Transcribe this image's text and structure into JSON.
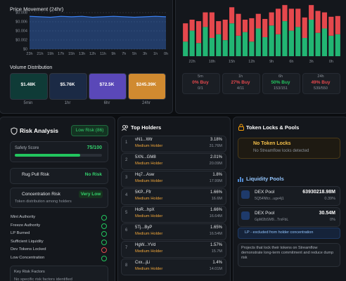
{
  "chart_data": [
    {
      "type": "line",
      "title": "Price Movement (24hr)",
      "categories": [
        "23h",
        "21h",
        "19h",
        "17h",
        "15h",
        "13h",
        "12h",
        "11h",
        "9h",
        "7h",
        "5h",
        "3h",
        "1h",
        "0h"
      ],
      "values": [
        0.0072,
        0.0071,
        0.007,
        0.0072,
        0.0071,
        0.0072,
        0.007,
        0.0071,
        0.0072,
        0.0071,
        0.007,
        0.0071,
        0.0072,
        0.0071
      ],
      "color": "#3b82f6",
      "ylim": [
        0,
        0.008
      ],
      "yticks": [
        {
          "value": 0,
          "label": "$0"
        },
        {
          "value": 0.002,
          "label": "$0.002"
        },
        {
          "value": 0.004,
          "label": "$0.004"
        },
        {
          "value": 0.006,
          "label": "$0.006"
        },
        {
          "value": 0.008,
          "label": "$0.008"
        }
      ],
      "grid": true
    },
    {
      "type": "bar",
      "stacked": true,
      "categories": [
        null,
        "22h",
        null,
        null,
        "18h",
        null,
        null,
        "15h",
        null,
        null,
        "12h",
        null,
        null,
        "9h",
        null,
        null,
        "6h",
        null,
        null,
        "3h",
        null,
        null,
        "0h",
        null
      ],
      "series": [
        {
          "color": "#22b573",
          "values": [
            20,
            35,
            18,
            40,
            25,
            30,
            22,
            45,
            28,
            33,
            20,
            38,
            26,
            42,
            30,
            48,
            35,
            40,
            25,
            50,
            32,
            38,
            28,
            30
          ]
        },
        {
          "color": "#e5484d",
          "values": [
            25,
            15,
            30,
            20,
            35,
            18,
            28,
            22,
            30,
            17,
            32,
            20,
            25,
            18,
            35,
            22,
            30,
            25,
            28,
            20,
            30,
            22,
            26,
            25
          ]
        }
      ],
      "ylim": [
        0,
        75
      ]
    }
  ],
  "volume": {
    "title": "Volume Distribution",
    "items": [
      {
        "value": "$1.48K",
        "label": "5min",
        "color": "#0f3b37"
      },
      {
        "value": "$5.76K",
        "label": "1hr",
        "color": "#1b2a45"
      },
      {
        "value": "$72.5K",
        "label": "6hr",
        "color": "#5a48b8"
      },
      {
        "value": "$245.39K",
        "label": "24hr",
        "color": "#d08a30"
      }
    ]
  },
  "buy_ratio": [
    {
      "period": "5m",
      "value": "0% Buy",
      "counts": "0/1",
      "color": "#e5484d"
    },
    {
      "period": "1h",
      "value": "27% Buy",
      "counts": "4/11",
      "color": "#e5484d"
    },
    {
      "period": "6h",
      "value": "50% Buy",
      "counts": "153/151",
      "color": "#22c55e"
    },
    {
      "period": "24h",
      "value": "49% Buy",
      "counts": "539/550",
      "color": "#e5484d"
    }
  ],
  "risk": {
    "title": "Risk Analysis",
    "badge": "Low Risk (86)",
    "safety_label": "Safety Score",
    "safety_text": "75/100",
    "safety_value": 75,
    "safety_max": 100,
    "rug_label": "Rug Pull Risk",
    "rug_value": "No Risk",
    "conc_label": "Concentration Risk",
    "conc_value": "Very Low",
    "conc_sub": "Token distribution among holders",
    "checks": [
      {
        "label": "Mint Authority",
        "ok": true
      },
      {
        "label": "Freeze Authority",
        "ok": true
      },
      {
        "label": "LP Burned",
        "ok": true
      },
      {
        "label": "Sufficient Liquidity",
        "ok": true
      },
      {
        "label": "Dev Tokens Locked",
        "ok": false
      },
      {
        "label": "Low Concentration",
        "ok": true
      }
    ],
    "factors_title": "Key Risk Factors",
    "factors_text": "No specific risk factors identified"
  },
  "holders": {
    "title": "Top Holders",
    "rows": [
      {
        "rank": 1,
        "address": "vN1...Wtr",
        "tag": "Medium Holder",
        "percent": "3.18%",
        "amount": "31.76M"
      },
      {
        "rank": 2,
        "address": "5XN...GM8",
        "tag": "Medium Holder",
        "percent": "2.01%",
        "amount": "20.09M"
      },
      {
        "rank": 3,
        "address": "Hq7...Asw",
        "tag": "Medium Holder",
        "percent": "1.8%",
        "amount": "17.99M"
      },
      {
        "rank": 4,
        "address": "5KP...Ffr",
        "tag": "Medium Holder",
        "percent": "1.66%",
        "amount": "16.6M"
      },
      {
        "rank": 5,
        "address": "HoR...hpX",
        "tag": "Medium Holder",
        "percent": "1.66%",
        "amount": "16.64M"
      },
      {
        "rank": 6,
        "address": "5Tj...ByP",
        "tag": "Medium Holder",
        "percent": "1.65%",
        "amount": "16.54M"
      },
      {
        "rank": 7,
        "address": "HgW...YVd",
        "tag": "Medium Holder",
        "percent": "1.57%",
        "amount": "15.7M"
      },
      {
        "rank": 8,
        "address": "Cxx...jLi",
        "tag": "Medium Holder",
        "percent": "1.4%",
        "amount": "14.01M"
      }
    ]
  },
  "locks": {
    "title": "Token Locks & Pools",
    "empty_title": "No Token Locks",
    "empty_text": "No Streamflow locks detected"
  },
  "pools": {
    "title": "Liquidity Pools",
    "rows": [
      {
        "name": "DEX Pool",
        "address": "5Q54Nfcr...uge4j1",
        "value": "63930218.98M",
        "percent": "0.39%"
      },
      {
        "name": "DEX Pool",
        "address": "GpM2bSM9...TrxFbL",
        "value": "30.54M",
        "percent": "0%"
      }
    ],
    "note": "LP - excluded from holder concentration",
    "tip": "Projects that lock their tokens on Streamflow demonstrate long-term commitment and reduce dump risk"
  }
}
